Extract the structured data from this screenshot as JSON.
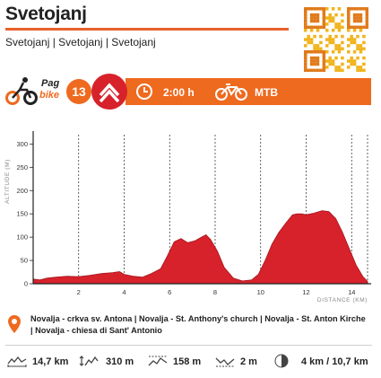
{
  "header": {
    "title": "Svetojanj",
    "subtitle": "Svetojanj | Svetojanj | Svetojanj"
  },
  "logo": {
    "line1": "Pag",
    "line2": "bike"
  },
  "info_bar": {
    "route_number": "13",
    "duration": "2:00 h",
    "bike_type": "MTB"
  },
  "colors": {
    "accent": "#ee6a1f",
    "area_fill": "#d7222b",
    "difficulty": "#d7222b"
  },
  "chart_data": {
    "type": "area",
    "xlabel": "DISTANCE (KM)",
    "ylabel": "ALTITUDE (M)",
    "xlim": [
      0,
      14.7
    ],
    "ylim": [
      0,
      320
    ],
    "xticks": [
      2,
      4,
      6,
      8,
      10,
      12,
      14
    ],
    "yticks": [
      0,
      50,
      100,
      150,
      200,
      250,
      300
    ],
    "grid": "vertical dashed",
    "series": [
      {
        "x": [
          0,
          0.3,
          0.6,
          1.0,
          1.5,
          2.0,
          2.5,
          3.0,
          3.5,
          3.8,
          4.0,
          4.4,
          4.8,
          5.2,
          5.6,
          5.9,
          6.2,
          6.5,
          6.8,
          7.1,
          7.4,
          7.6,
          7.8,
          8.1,
          8.4,
          8.8,
          9.2,
          9.6,
          9.9,
          10.2,
          10.5,
          10.8,
          11.1,
          11.4,
          11.6,
          11.8,
          12.0,
          12.3,
          12.7,
          13.0,
          13.3,
          13.6,
          13.9,
          14.2,
          14.5,
          14.7
        ],
        "y": [
          10,
          8,
          12,
          14,
          16,
          15,
          18,
          22,
          24,
          26,
          20,
          16,
          14,
          22,
          32,
          60,
          90,
          97,
          88,
          92,
          100,
          105,
          95,
          70,
          35,
          12,
          6,
          8,
          20,
          50,
          85,
          110,
          130,
          148,
          150,
          150,
          148,
          151,
          157,
          155,
          140,
          110,
          75,
          40,
          15,
          5
        ]
      }
    ]
  },
  "address": {
    "text": "Novalja - crkva sv. Antona | Novalja - St. Anthony's church | Novalja - St. Anton Kirche  |  Novalja - chiesa di Sant' Antonio"
  },
  "stats": {
    "distance": "14,7 km",
    "elevation_gain": "310 m",
    "max_altitude": "158 m",
    "min_altitude": "2 m",
    "surface": "4 km / 10,7 km"
  }
}
